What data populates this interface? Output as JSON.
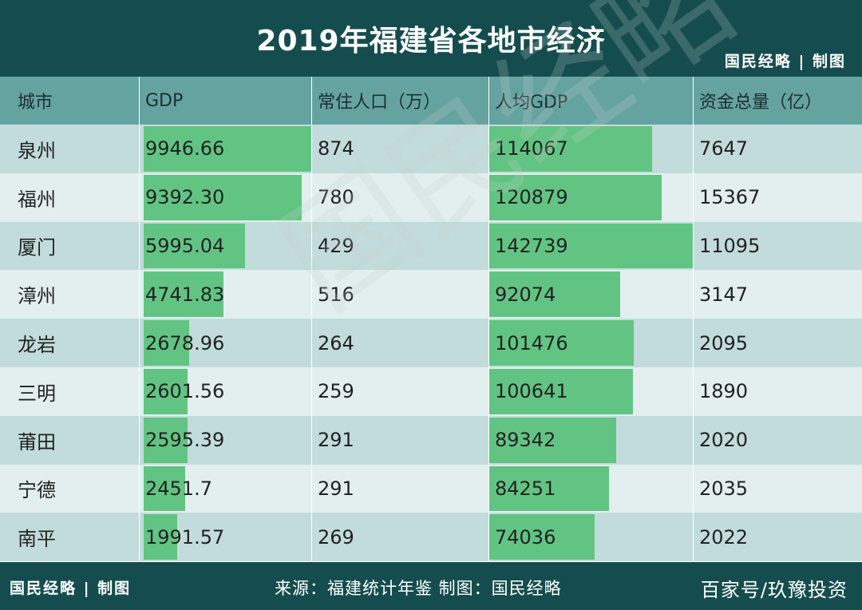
{
  "title": "2019年福建省各地市经济",
  "brand": "国民经略 | 制图",
  "watermark": "国民经略",
  "colors": {
    "header_bg": "#154d4f",
    "table_header_bg": "#65a3a0",
    "row_dark": "#c2dcdb",
    "row_light": "#e2efee",
    "bar": "#62c483"
  },
  "chart_data": {
    "type": "table",
    "columns": [
      "城市",
      "GDP",
      "常住人口（万）",
      "人均GDP",
      "资金总量（亿）"
    ],
    "rows": [
      [
        "泉州",
        "9946.66",
        "874",
        "114067",
        "7647"
      ],
      [
        "福州",
        "9392.30",
        "780",
        "120879",
        "15367"
      ],
      [
        "厦门",
        "5995.04",
        "429",
        "142739",
        "11095"
      ],
      [
        "漳州",
        "4741.83",
        "516",
        "92074",
        "3147"
      ],
      [
        "龙岩",
        "2678.96",
        "264",
        "101476",
        "2095"
      ],
      [
        "三明",
        "2601.56",
        "259",
        "100641",
        "1890"
      ],
      [
        "莆田",
        "2595.39",
        "291",
        "89342",
        "2020"
      ],
      [
        "宁德",
        "2451.7",
        "291",
        "84251",
        "2035"
      ],
      [
        "南平",
        "1991.57",
        "269",
        "74036",
        "2022"
      ]
    ],
    "bar_columns": [
      1,
      3
    ]
  },
  "footer": {
    "source": "来源：福建统计年鉴  制图：国民经略",
    "credit": "百家号/玖豫投资"
  }
}
